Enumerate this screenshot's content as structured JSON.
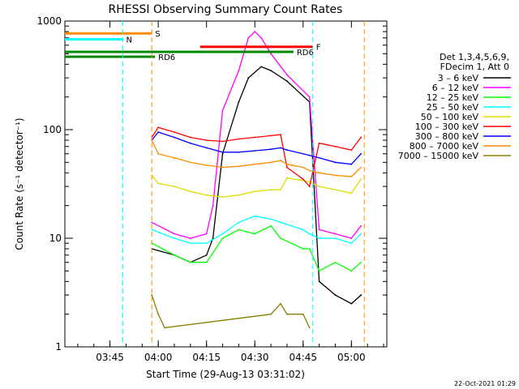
{
  "chart_data": {
    "type": "line",
    "title": "RHESSI Observing Summary Count Rates",
    "xlabel": "Start Time (29-Aug-13 03:31:02)",
    "ylabel": "Count Rate (s⁻¹ detector⁻¹)",
    "x_range_minutes": [
      "03:31",
      "05:11"
    ],
    "ylim": [
      1,
      1000
    ],
    "log_scale_y": true,
    "x_ticks": [
      "03:45",
      "04:00",
      "04:15",
      "04:30",
      "04:45",
      "05:00"
    ],
    "y_ticks": [
      "1",
      "10",
      "100",
      "1000"
    ],
    "legend_header": [
      "Det 1,3,4,5,6,9,",
      "FDecim 1, Att 0"
    ],
    "legend_placement": "right",
    "date_stamp": "22-Oct-2021 01:29",
    "colors": {
      "s1": "#000000",
      "s2": "#ff00ff",
      "s3": "#00ff00",
      "s4": "#00ffff",
      "s5": "#dddd00",
      "s6": "#ff0000",
      "s7": "#0000ff",
      "s8": "#ff8c00",
      "s9": "#8b7d00",
      "orange": "#ff8c00",
      "cyan": "#00ffff",
      "green": "#008800",
      "red": "#ff0000"
    },
    "series": [
      {
        "name": "3 – 6 keV",
        "color": "#000000",
        "x": [
          "03:58",
          "04:05",
          "04:10",
          "04:15",
          "04:17",
          "04:20",
          "04:25",
          "04:28",
          "04:32",
          "04:35",
          "04:40",
          "04:47",
          "04:50",
          "04:55",
          "05:00",
          "05:03"
        ],
        "y": [
          8,
          7,
          6,
          7,
          10,
          60,
          180,
          300,
          380,
          350,
          280,
          180,
          4,
          3,
          2.5,
          3
        ]
      },
      {
        "name": "6 – 12 keV",
        "color": "#ff00ff",
        "x": [
          "03:58",
          "04:05",
          "04:10",
          "04:15",
          "04:17",
          "04:20",
          "04:25",
          "04:28",
          "04:30",
          "04:32",
          "04:35",
          "04:40",
          "04:47",
          "04:50",
          "04:55",
          "05:00",
          "05:03"
        ],
        "y": [
          14,
          11,
          10,
          11,
          20,
          150,
          350,
          700,
          800,
          700,
          500,
          320,
          200,
          12,
          11,
          10,
          13
        ]
      },
      {
        "name": "12 – 25 keV",
        "color": "#00ff00",
        "x": [
          "03:58",
          "04:05",
          "04:10",
          "04:15",
          "04:20",
          "04:25",
          "04:30",
          "04:35",
          "04:38",
          "04:45",
          "04:47",
          "04:50",
          "04:55",
          "05:00",
          "05:03"
        ],
        "y": [
          9,
          7,
          6,
          6,
          10,
          12,
          11,
          13,
          10,
          8,
          8,
          5,
          6,
          5,
          6
        ]
      },
      {
        "name": "25 – 50 keV",
        "color": "#00ffff",
        "x": [
          "03:58",
          "04:05",
          "04:10",
          "04:15",
          "04:20",
          "04:25",
          "04:30",
          "04:35",
          "04:38",
          "04:45",
          "04:47",
          "04:50",
          "04:55",
          "05:00",
          "05:03"
        ],
        "y": [
          12,
          10,
          9,
          9,
          11,
          14,
          16,
          15,
          14,
          12,
          11,
          10,
          10,
          9,
          11
        ]
      },
      {
        "name": "50 – 100 keV",
        "color": "#dddd00",
        "x": [
          "03:58",
          "04:00",
          "04:05",
          "04:10",
          "04:15",
          "04:20",
          "04:25",
          "04:30",
          "04:35",
          "04:38",
          "04:40",
          "04:45",
          "04:47",
          "04:50",
          "04:55",
          "05:00",
          "05:03"
        ],
        "y": [
          38,
          32,
          30,
          27,
          25,
          24,
          25,
          27,
          28,
          28,
          36,
          34,
          33,
          30,
          28,
          26,
          35
        ]
      },
      {
        "name": "100 – 300 keV",
        "color": "#ff0000",
        "x": [
          "03:58",
          "04:00",
          "04:05",
          "04:10",
          "04:15",
          "04:20",
          "04:25",
          "04:30",
          "04:35",
          "04:38",
          "04:40",
          "04:45",
          "04:47",
          "04:50",
          "04:55",
          "05:00",
          "05:03"
        ],
        "y": [
          85,
          105,
          95,
          85,
          80,
          78,
          82,
          85,
          88,
          90,
          45,
          35,
          30,
          75,
          70,
          65,
          85
        ]
      },
      {
        "name": "300 – 800 keV",
        "color": "#0000ff",
        "x": [
          "03:58",
          "04:00",
          "04:05",
          "04:10",
          "04:15",
          "04:20",
          "04:25",
          "04:30",
          "04:35",
          "04:38",
          "04:40",
          "04:45",
          "04:47",
          "04:50",
          "04:55",
          "05:00",
          "05:03"
        ],
        "y": [
          80,
          95,
          85,
          75,
          68,
          62,
          62,
          64,
          66,
          68,
          65,
          60,
          58,
          55,
          50,
          48,
          60
        ]
      },
      {
        "name": "800 – 7000 keV",
        "color": "#ff8c00",
        "x": [
          "03:58",
          "04:00",
          "04:05",
          "04:10",
          "04:15",
          "04:20",
          "04:25",
          "04:30",
          "04:35",
          "04:38",
          "04:40",
          "04:45",
          "04:47",
          "04:50",
          "04:55",
          "05:00",
          "05:03"
        ],
        "y": [
          80,
          60,
          55,
          50,
          47,
          45,
          46,
          48,
          50,
          52,
          48,
          45,
          42,
          40,
          38,
          37,
          45
        ]
      },
      {
        "name": "7000 – 15000 keV",
        "color": "#8b7d00",
        "x": [
          "03:58",
          "04:00",
          "04:02",
          "04:35",
          "04:38",
          "04:40",
          "04:45",
          "04:47"
        ],
        "y": [
          3,
          2,
          1.5,
          2,
          2.5,
          2,
          2,
          1.5
        ]
      }
    ],
    "annotations": [
      {
        "label": "S",
        "color": "#ff8c00",
        "x": [
          "03:31",
          "03:58"
        ],
        "y": 770
      },
      {
        "label": "N",
        "color": "#00ffff",
        "x": [
          "03:31",
          "03:49"
        ],
        "y": 680
      },
      {
        "label": "F",
        "color": "#ff0000",
        "x": [
          "04:13",
          "04:48"
        ],
        "y": 580
      },
      {
        "label": "RD6",
        "color": "#008800",
        "x": [
          "03:31",
          "04:42"
        ],
        "y": 520
      },
      {
        "label": "RD6",
        "color": "#008800",
        "x": [
          "03:31",
          "03:59"
        ],
        "y": 470
      }
    ]
  }
}
